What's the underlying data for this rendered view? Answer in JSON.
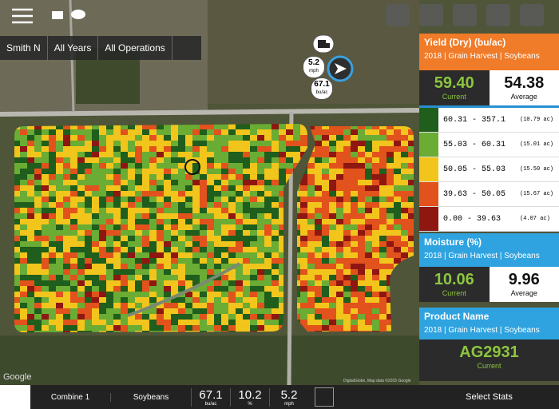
{
  "filters": [
    "Smith N",
    "All Years",
    "All Operations"
  ],
  "map_badges": [
    {
      "value": "5.2",
      "unit": "mph"
    },
    {
      "value": "67.1",
      "unit": "bu/ac"
    }
  ],
  "yield": {
    "title": "Yield (Dry) (bu/ac)",
    "subtitle": "2018 | Grain Harvest | Soybeans",
    "current": "59.40",
    "current_label": "Current",
    "average": "54.38",
    "average_label": "Average",
    "legend": [
      {
        "range": "60.31 - 357.1",
        "area": "(10.79 ac)",
        "color": "#1f5e1c"
      },
      {
        "range": "55.03 - 60.31",
        "area": "(15.01 ac)",
        "color": "#6aac34"
      },
      {
        "range": "50.05 - 55.03",
        "area": "(15.50 ac)",
        "color": "#f2c51c"
      },
      {
        "range": "39.63 - 50.05",
        "area": "(15.67 ac)",
        "color": "#e2521c"
      },
      {
        "range": "0.00 - 39.63",
        "area": "(4.07 ac)",
        "color": "#8e1712"
      }
    ]
  },
  "moisture": {
    "title": "Moisture (%)",
    "subtitle": "2018 | Grain Harvest | Soybeans",
    "current": "10.06",
    "current_label": "Current",
    "average": "9.96",
    "average_label": "Average"
  },
  "product": {
    "title": "Product Name",
    "subtitle": "2018 | Grain Harvest | Soybeans",
    "value": "AG2931",
    "label": "Current"
  },
  "bottom_bar": {
    "machine": "Combine 1",
    "crop": "Soybeans",
    "readouts": [
      {
        "value": "67.1",
        "unit": "bu/ac"
      },
      {
        "value": "10.2",
        "unit": "%"
      },
      {
        "value": "5.2",
        "unit": "mph"
      }
    ],
    "select": "Select Stats"
  },
  "map_logo": "Google",
  "attribution": "DigitalGlobe, Map data ©2015 Google"
}
